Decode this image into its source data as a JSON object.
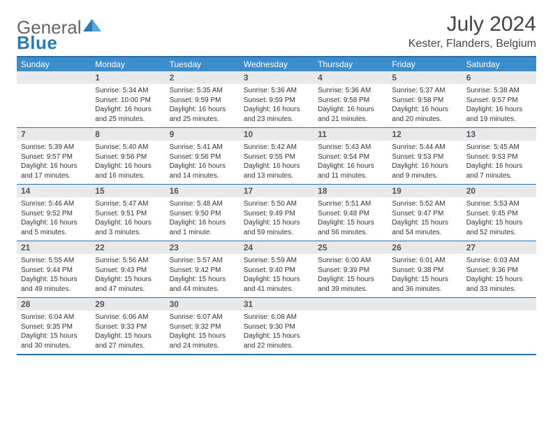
{
  "logo": {
    "text1": "General",
    "text2": "Blue"
  },
  "title": "July 2024",
  "location": "Kester, Flanders, Belgium",
  "colors": {
    "header_bg": "#3c8dcc",
    "header_border": "#2a6ea8",
    "daynum_bg": "#e8e9ea",
    "text": "#333333",
    "logo_blue": "#2a7ab0"
  },
  "dow": [
    "Sunday",
    "Monday",
    "Tuesday",
    "Wednesday",
    "Thursday",
    "Friday",
    "Saturday"
  ],
  "weeks": [
    [
      {
        "n": "",
        "sr": "",
        "ss": "",
        "dl": ""
      },
      {
        "n": "1",
        "sr": "5:34 AM",
        "ss": "10:00 PM",
        "dl": "16 hours and 25 minutes."
      },
      {
        "n": "2",
        "sr": "5:35 AM",
        "ss": "9:59 PM",
        "dl": "16 hours and 25 minutes."
      },
      {
        "n": "3",
        "sr": "5:36 AM",
        "ss": "9:59 PM",
        "dl": "16 hours and 23 minutes."
      },
      {
        "n": "4",
        "sr": "5:36 AM",
        "ss": "9:58 PM",
        "dl": "16 hours and 21 minutes."
      },
      {
        "n": "5",
        "sr": "5:37 AM",
        "ss": "9:58 PM",
        "dl": "16 hours and 20 minutes."
      },
      {
        "n": "6",
        "sr": "5:38 AM",
        "ss": "9:57 PM",
        "dl": "16 hours and 19 minutes."
      }
    ],
    [
      {
        "n": "7",
        "sr": "5:39 AM",
        "ss": "9:57 PM",
        "dl": "16 hours and 17 minutes."
      },
      {
        "n": "8",
        "sr": "5:40 AM",
        "ss": "9:56 PM",
        "dl": "16 hours and 16 minutes."
      },
      {
        "n": "9",
        "sr": "5:41 AM",
        "ss": "9:56 PM",
        "dl": "16 hours and 14 minutes."
      },
      {
        "n": "10",
        "sr": "5:42 AM",
        "ss": "9:55 PM",
        "dl": "16 hours and 13 minutes."
      },
      {
        "n": "11",
        "sr": "5:43 AM",
        "ss": "9:54 PM",
        "dl": "16 hours and 11 minutes."
      },
      {
        "n": "12",
        "sr": "5:44 AM",
        "ss": "9:53 PM",
        "dl": "16 hours and 9 minutes."
      },
      {
        "n": "13",
        "sr": "5:45 AM",
        "ss": "9:53 PM",
        "dl": "16 hours and 7 minutes."
      }
    ],
    [
      {
        "n": "14",
        "sr": "5:46 AM",
        "ss": "9:52 PM",
        "dl": "16 hours and 5 minutes."
      },
      {
        "n": "15",
        "sr": "5:47 AM",
        "ss": "9:51 PM",
        "dl": "16 hours and 3 minutes."
      },
      {
        "n": "16",
        "sr": "5:48 AM",
        "ss": "9:50 PM",
        "dl": "16 hours and 1 minute."
      },
      {
        "n": "17",
        "sr": "5:50 AM",
        "ss": "9:49 PM",
        "dl": "15 hours and 59 minutes."
      },
      {
        "n": "18",
        "sr": "5:51 AM",
        "ss": "9:48 PM",
        "dl": "15 hours and 56 minutes."
      },
      {
        "n": "19",
        "sr": "5:52 AM",
        "ss": "9:47 PM",
        "dl": "15 hours and 54 minutes."
      },
      {
        "n": "20",
        "sr": "5:53 AM",
        "ss": "9:45 PM",
        "dl": "15 hours and 52 minutes."
      }
    ],
    [
      {
        "n": "21",
        "sr": "5:55 AM",
        "ss": "9:44 PM",
        "dl": "15 hours and 49 minutes."
      },
      {
        "n": "22",
        "sr": "5:56 AM",
        "ss": "9:43 PM",
        "dl": "15 hours and 47 minutes."
      },
      {
        "n": "23",
        "sr": "5:57 AM",
        "ss": "9:42 PM",
        "dl": "15 hours and 44 minutes."
      },
      {
        "n": "24",
        "sr": "5:59 AM",
        "ss": "9:40 PM",
        "dl": "15 hours and 41 minutes."
      },
      {
        "n": "25",
        "sr": "6:00 AM",
        "ss": "9:39 PM",
        "dl": "15 hours and 39 minutes."
      },
      {
        "n": "26",
        "sr": "6:01 AM",
        "ss": "9:38 PM",
        "dl": "15 hours and 36 minutes."
      },
      {
        "n": "27",
        "sr": "6:03 AM",
        "ss": "9:36 PM",
        "dl": "15 hours and 33 minutes."
      }
    ],
    [
      {
        "n": "28",
        "sr": "6:04 AM",
        "ss": "9:35 PM",
        "dl": "15 hours and 30 minutes."
      },
      {
        "n": "29",
        "sr": "6:06 AM",
        "ss": "9:33 PM",
        "dl": "15 hours and 27 minutes."
      },
      {
        "n": "30",
        "sr": "6:07 AM",
        "ss": "9:32 PM",
        "dl": "15 hours and 24 minutes."
      },
      {
        "n": "31",
        "sr": "6:08 AM",
        "ss": "9:30 PM",
        "dl": "15 hours and 22 minutes."
      },
      {
        "n": "",
        "sr": "",
        "ss": "",
        "dl": ""
      },
      {
        "n": "",
        "sr": "",
        "ss": "",
        "dl": ""
      },
      {
        "n": "",
        "sr": "",
        "ss": "",
        "dl": ""
      }
    ]
  ],
  "labels": {
    "sunrise": "Sunrise: ",
    "sunset": "Sunset: ",
    "daylight": "Daylight: "
  }
}
